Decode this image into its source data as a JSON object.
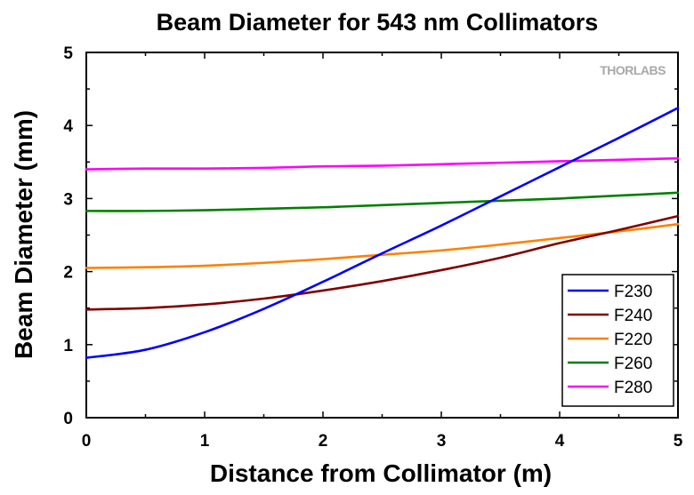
{
  "chart_data": {
    "type": "line",
    "title": "Beam Diameter for 543 nm Collimators",
    "xlabel": "Distance from Collimator (m)",
    "ylabel": "Beam Diameter (mm)",
    "xlim": [
      0,
      5
    ],
    "ylim": [
      0,
      5
    ],
    "xticks": [
      "0",
      "1",
      "2",
      "3",
      "4",
      "5"
    ],
    "yticks": [
      "0",
      "1",
      "2",
      "3",
      "4",
      "5"
    ],
    "grid": false,
    "legend_position": "bottom-right",
    "x": [
      0,
      0.5,
      1,
      1.5,
      2,
      2.5,
      3,
      3.5,
      4,
      4.5,
      5
    ],
    "series": [
      {
        "name": "F230",
        "color": "#0000ff",
        "values": [
          0.82,
          0.93,
          1.17,
          1.49,
          1.86,
          2.25,
          2.63,
          3.03,
          3.43,
          3.83,
          4.24
        ]
      },
      {
        "name": "F240",
        "color": "#800000",
        "values": [
          1.48,
          1.5,
          1.55,
          1.63,
          1.74,
          1.87,
          2.02,
          2.19,
          2.39,
          2.57,
          2.76
        ]
      },
      {
        "name": "F220",
        "color": "#ff8000",
        "values": [
          2.05,
          2.06,
          2.08,
          2.12,
          2.17,
          2.23,
          2.29,
          2.37,
          2.46,
          2.55,
          2.65
        ]
      },
      {
        "name": "F260",
        "color": "#008000",
        "values": [
          2.83,
          2.83,
          2.84,
          2.86,
          2.88,
          2.91,
          2.94,
          2.97,
          3.0,
          3.04,
          3.08
        ]
      },
      {
        "name": "F280",
        "color": "#ff00ff",
        "values": [
          3.4,
          3.41,
          3.41,
          3.42,
          3.44,
          3.45,
          3.47,
          3.49,
          3.51,
          3.53,
          3.55
        ]
      }
    ]
  },
  "logo": {
    "text": "THORLABS"
  }
}
